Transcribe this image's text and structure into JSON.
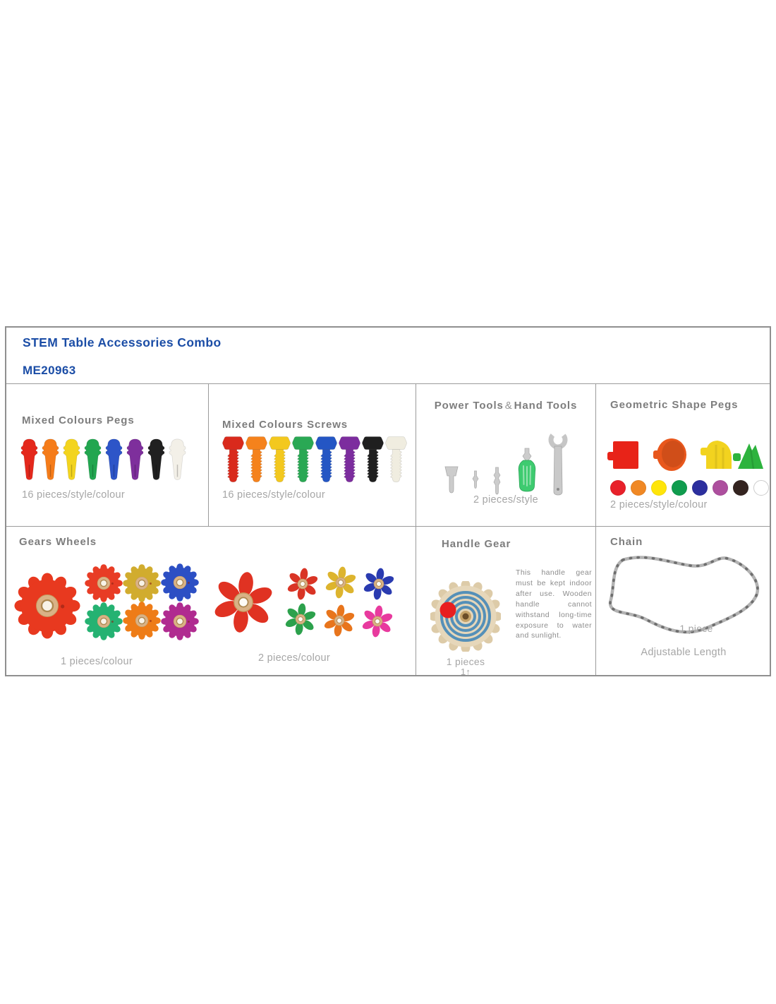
{
  "header": {
    "title": "STEM Table Accessories Combo",
    "model": "ME20963",
    "accent_color": "#1b4da6"
  },
  "cells": {
    "pegs": {
      "heading": "Mixed Colours Pegs",
      "caption": "16 pieces/style/colour",
      "colors": [
        "#e4281c",
        "#f57c1a",
        "#f3d41e",
        "#22a650",
        "#2d55c8",
        "#7e2f9c",
        "#202020",
        "#f3f0e8"
      ]
    },
    "screws": {
      "heading": "Mixed Colours Screws",
      "caption": "16 pieces/style/colour",
      "colors": [
        "#d92a1c",
        "#f5821c",
        "#f3c81e",
        "#2aa854",
        "#2456c4",
        "#7c2d9e",
        "#1f1f1f",
        "#f0ede0"
      ]
    },
    "tools": {
      "heading_left": "Power Tools",
      "heading_amp": "&",
      "heading_right": "Hand Tools",
      "caption": "2 pieces/style",
      "handle_color": "#3ecb70",
      "metal_color": "#cccccc"
    },
    "geo": {
      "heading": "Geometric Shape Pegs",
      "caption": "2 pieces/style/colour",
      "square_color": "#e82318",
      "disc_color": "#e8571c",
      "quarter_color": "#f2d31f",
      "triangle_color": "#2db33e",
      "dot_colors": [
        "#e8212a",
        "#f08824",
        "#ffe50a",
        "#109c4e",
        "#2c2f9e",
        "#ad4f9e",
        "#342420",
        "#ffffff"
      ]
    },
    "gears": {
      "heading": "Gears Wheels",
      "caption_left": "1 pieces/colour",
      "caption_right": "2 pieces/colour",
      "hub_color": "#d9b286",
      "large_gear_color": "#e8391f",
      "small_gear_colors": [
        "#e83c25",
        "#d1ac2e",
        "#2c4fc4",
        "#25b272",
        "#ee7c17",
        "#b02b90"
      ],
      "large_flower_color": "#e03222",
      "small_flower_colors": [
        "#d93425",
        "#ddb42e",
        "#2a3bb0",
        "#2ca14c",
        "#e8751c",
        "#e83a9e"
      ]
    },
    "handle": {
      "heading": "Handle Gear",
      "note": "This handle gear must be kept indoor after use. Wooden handle cannot withstand long-time exposure to water and sunlight.",
      "caption": "1 pieces",
      "caption2": "1↑",
      "body_color": "#e6d7ba",
      "teeth_color": "#ddcba8",
      "ring_color": "#5590b8",
      "knob_color": "#e81f1f"
    },
    "chain": {
      "heading": "Chain",
      "caption": "1 piece",
      "caption2": "Adjustable Length",
      "color": "#b3b3b3",
      "pin_color": "#6e6e6e"
    }
  }
}
